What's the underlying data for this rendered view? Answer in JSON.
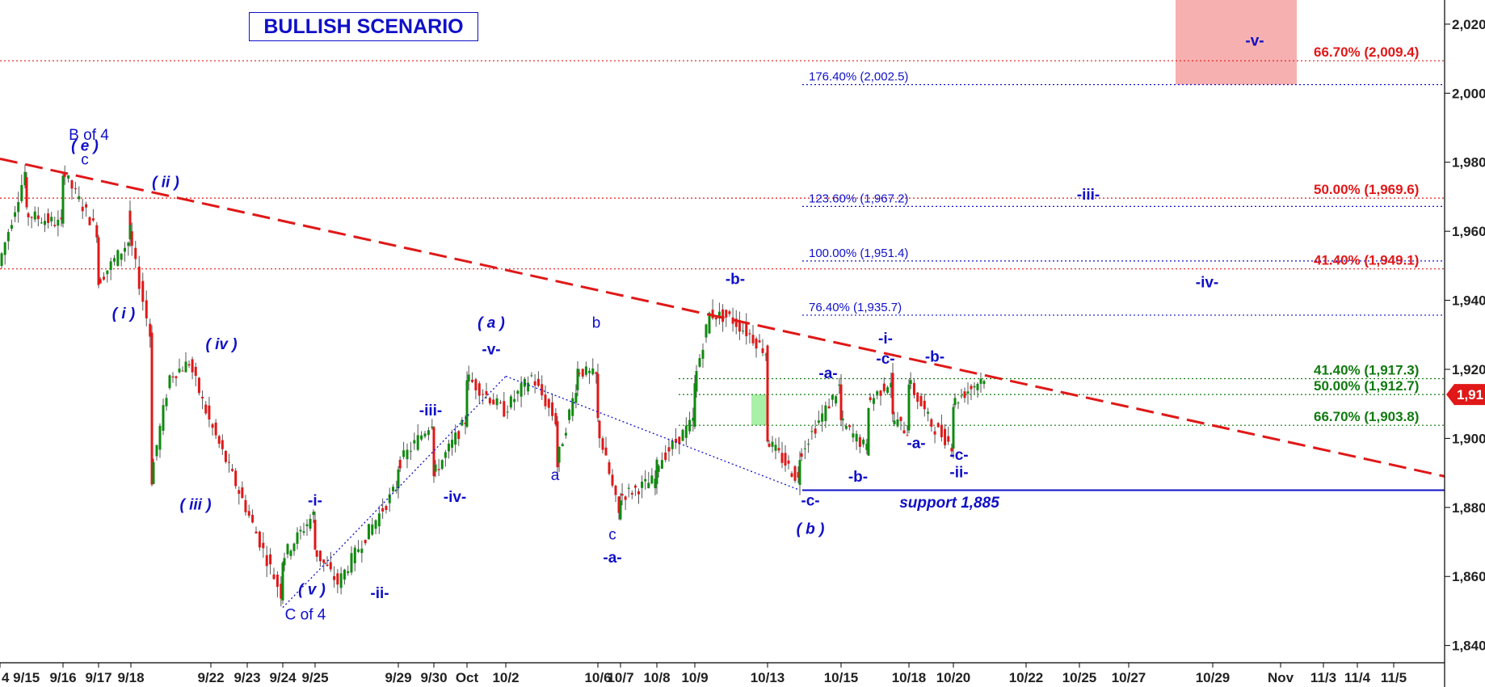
{
  "title": "BULLISH SCENARIO",
  "price_tag": "1,91",
  "chart_data": {
    "type": "candlestick",
    "title": "BULLISH SCENARIO",
    "xlabel": "",
    "ylabel": "",
    "ylim": [
      1835,
      2027
    ],
    "grid": false,
    "x_ticks": [
      "4 9/15",
      "9/16",
      "9/17",
      "9/18",
      "9/22",
      "9/23",
      "9/24",
      "9/25",
      "9/29",
      "9/30",
      "Oct",
      "10/2",
      "10/6",
      "10/7",
      "10/8",
      "10/9",
      "10/13",
      "10/15",
      "10/18",
      "10/20",
      "10/22",
      "10/25",
      "10/27",
      "10/29",
      "Nov",
      "11/3",
      "11/4",
      "11/5"
    ],
    "y_ticks": [
      "1,840",
      "1,860",
      "1,880",
      "1,900",
      "1,920",
      "1,940",
      "1,960",
      "1,980",
      "2,000",
      "2,020"
    ],
    "price_path_points": [
      [
        "9/14",
        1950
      ],
      [
        "9/15",
        1977
      ],
      [
        "9/15",
        1965
      ],
      [
        "9/16",
        1962
      ],
      [
        "9/16",
        1978
      ],
      [
        "9/17",
        1960
      ],
      [
        "9/17",
        1945
      ],
      [
        "9/18",
        1957
      ],
      [
        "9/18",
        1966
      ],
      [
        "9/18",
        1960
      ],
      [
        "9/19",
        1930
      ],
      [
        "9/19",
        1888
      ],
      [
        "9/20",
        1918
      ],
      [
        "9/21",
        1922
      ],
      [
        "9/22",
        1905
      ],
      [
        "9/23",
        1880
      ],
      [
        "9/24",
        1855
      ],
      [
        "9/24",
        1865
      ],
      [
        "9/25",
        1878
      ],
      [
        "9/25",
        1868
      ],
      [
        "9/26",
        1858
      ],
      [
        "9/27",
        1870
      ],
      [
        "9/29",
        1886
      ],
      [
        "9/29",
        1892
      ],
      [
        "9/30",
        1905
      ],
      [
        "9/30",
        1893
      ],
      [
        "9/30",
        1889
      ],
      [
        "10/1",
        1905
      ],
      [
        "10/1",
        1918
      ],
      [
        "10/2",
        1908
      ],
      [
        "10/3",
        1918
      ],
      [
        "10/4",
        1905
      ],
      [
        "10/4",
        1892
      ],
      [
        "10/5",
        1915
      ],
      [
        "10/5",
        1920
      ],
      [
        "10/6",
        1918
      ],
      [
        "10/6",
        1905
      ],
      [
        "10/7",
        1878
      ],
      [
        "10/7",
        1883
      ],
      [
        "10/8",
        1888
      ],
      [
        "10/8",
        1892
      ],
      [
        "10/9",
        1905
      ],
      [
        "10/9",
        1915
      ],
      [
        "10/10",
        1936
      ],
      [
        "10/11",
        1935
      ],
      [
        "10/12",
        1930
      ],
      [
        "10/13",
        1925
      ],
      [
        "10/13",
        1900
      ],
      [
        "10/14",
        1888
      ],
      [
        "10/14",
        1895
      ],
      [
        "10/15",
        1915
      ],
      [
        "10/15",
        1905
      ],
      [
        "10/16",
        1897
      ],
      [
        "10/16",
        1910
      ],
      [
        "10/17",
        1917
      ],
      [
        "10/17",
        1906
      ],
      [
        "10/18",
        1902
      ],
      [
        "10/18",
        1917
      ],
      [
        "10/19",
        1904
      ],
      [
        "10/20",
        1898
      ],
      [
        "10/20",
        1910
      ],
      [
        "10/21",
        1918
      ]
    ],
    "annotations": [
      {
        "text": "B of 4",
        "date": "9/16",
        "price": 1986.5
      },
      {
        "text": "( e )",
        "date": "9/16",
        "price": 1983.3
      },
      {
        "text": "c",
        "date": "9/16",
        "price": 1979.3
      },
      {
        "text": "( ii )",
        "date": "9/18",
        "price": 1972.8
      },
      {
        "text": "( i )",
        "date": "9/18",
        "price": 1934.7
      },
      {
        "text": "( iv )",
        "date": "9/21",
        "price": 1925.8
      },
      {
        "text": "( iii )",
        "date": "9/20",
        "price": 1879.4
      },
      {
        "text": "-i-",
        "date": "9/25",
        "price": 1880.5
      },
      {
        "text": "( v )",
        "date": "9/24",
        "price": 1854.8
      },
      {
        "text": "C of 4",
        "date": "9/24",
        "price": 1847.5
      },
      {
        "text": "-ii-",
        "date": "9/27",
        "price": 1853.7
      },
      {
        "text": "-iii-",
        "date": "9/30",
        "price": 1906.6
      },
      {
        "text": "-iv-",
        "date": "10/1",
        "price": 1881.6
      },
      {
        "text": "( a )",
        "date": "10/2",
        "price": 1932.1
      },
      {
        "text": "-v-",
        "date": "10/2",
        "price": 1924.3
      },
      {
        "text": "b",
        "date": "10/6",
        "price": 1932.1
      },
      {
        "text": "a",
        "date": "10/4",
        "price": 1887.9
      },
      {
        "text": "c",
        "date": "10/7",
        "price": 1870.7
      },
      {
        "text": "-a-",
        "date": "10/7",
        "price": 1864.0
      },
      {
        "text": "-b-",
        "date": "10/11",
        "price": 1944.7
      },
      {
        "text": "-a-",
        "date": "10/15",
        "price": 1917.4
      },
      {
        "text": "-b-",
        "date": "10/15",
        "price": 1887.4
      },
      {
        "text": "-c-",
        "date": "10/14",
        "price": 1880.5
      },
      {
        "text": "( b )",
        "date": "10/14",
        "price": 1872.4
      },
      {
        "text": "-i-",
        "date": "10/17",
        "price": 1927.5
      },
      {
        "text": "-c-",
        "date": "10/17",
        "price": 1921.6
      },
      {
        "text": "-b-",
        "date": "10/19",
        "price": 1922.2
      },
      {
        "text": "-a-",
        "date": "10/18",
        "price": 1897.2
      },
      {
        "text": "-c-",
        "date": "10/20",
        "price": 1893.8
      },
      {
        "text": "-ii-",
        "date": "10/20",
        "price": 1888.7
      },
      {
        "text": "-iii-",
        "date": "10/25",
        "price": 1969.2
      },
      {
        "text": "-iv-",
        "date": "10/27",
        "price": 1943.8
      },
      {
        "text": "-v-",
        "date": "10/31",
        "price": 2013.8
      },
      {
        "text": "support 1,885",
        "date": "10/23",
        "price": 1879.9
      }
    ],
    "horizontal_levels": [
      {
        "label": "66.70% (2,009.4)",
        "value": 2009.4,
        "color": "#e01818",
        "style": "dotted"
      },
      {
        "label": "176.40% (2,002.5)",
        "value": 2002.5,
        "color": "#1010c8",
        "style": "dotted"
      },
      {
        "label": "50.00% (1,969.6)",
        "value": 1969.6,
        "color": "#e01818",
        "style": "dotted"
      },
      {
        "label": "123.60% (1,967.2)",
        "value": 1967.2,
        "color": "#1010c8",
        "style": "dotted"
      },
      {
        "label": "100.00% (1,951.4)",
        "value": 1951.4,
        "color": "#1010c8",
        "style": "dotted"
      },
      {
        "label": "41.40% (1,949.1)",
        "value": 1949.1,
        "color": "#e01818",
        "style": "dotted"
      },
      {
        "label": "76.40% (1,935.7)",
        "value": 1935.7,
        "color": "#1010c8",
        "style": "dotted"
      },
      {
        "label": "41.40% (1,917.3)",
        "value": 1917.3,
        "color": "#107a10",
        "style": "dotted"
      },
      {
        "label": "50.00% (1,912.7)",
        "value": 1912.7,
        "color": "#107a10",
        "style": "dotted"
      },
      {
        "label": "66.70% (1,903.8)",
        "value": 1903.8,
        "color": "#107a10",
        "style": "dotted"
      },
      {
        "label": "",
        "value": 1885,
        "color": "#1010c8",
        "style": "solid"
      }
    ],
    "trendline": {
      "start": [
        "9/14",
        1981
      ],
      "end": [
        "11/5",
        1889
      ],
      "color": "#e01818",
      "style": "dashed"
    },
    "target_zones": [
      {
        "color": "#f7b0b0",
        "x_range": [
          "10/28",
          "10/31"
        ],
        "y_range": [
          2002.5,
          2027
        ]
      },
      {
        "color": "#a9f0a9",
        "x_range": [
          "10/12",
          "10/13"
        ],
        "y_range": [
          1903.8,
          1912.7
        ]
      }
    ],
    "channel_lines": [
      {
        "points": [
          [
            "9/24",
            1851
          ],
          [
            "10/2",
            1918
          ]
        ],
        "color": "#1010c8",
        "style": "dotted"
      },
      {
        "points": [
          [
            "10/2",
            1918
          ],
          [
            "10/14",
            1885
          ]
        ],
        "color": "#1010c8",
        "style": "dotted"
      }
    ],
    "colors": {
      "up": "#108a10",
      "down": "#e01818",
      "wave": "#1010c8",
      "support": "#1010c8",
      "trend": "#e01818"
    }
  }
}
